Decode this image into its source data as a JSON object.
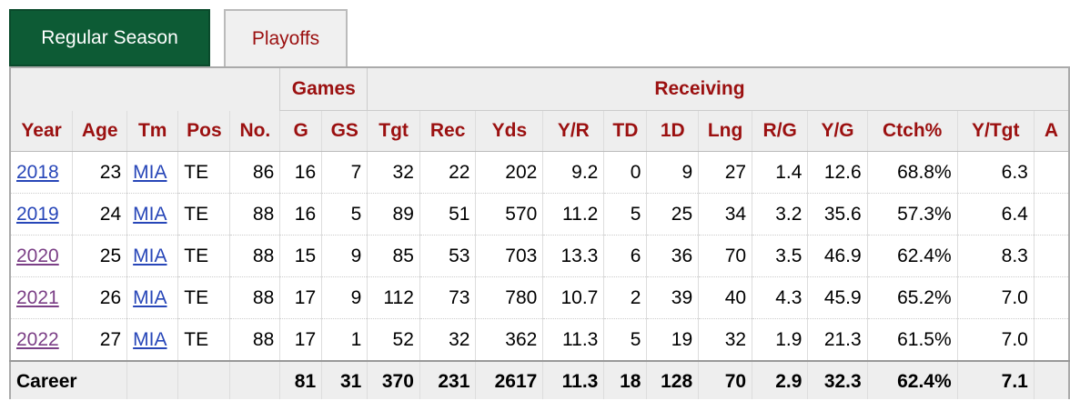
{
  "tabs": [
    "Regular Season",
    "Playoffs"
  ],
  "table": {
    "group_headers": [
      "Games",
      "Receiving"
    ],
    "columns": [
      "Year",
      "Age",
      "Tm",
      "Pos",
      "No.",
      "G",
      "GS",
      "Tgt",
      "Rec",
      "Yds",
      "Y/R",
      "TD",
      "1D",
      "Lng",
      "R/G",
      "Y/G",
      "Ctch%",
      "Y/Tgt",
      "A"
    ],
    "rows": [
      [
        "2018",
        "23",
        "MIA",
        "TE",
        "86",
        "16",
        "7",
        "32",
        "22",
        "202",
        "9.2",
        "0",
        "9",
        "27",
        "1.4",
        "12.6",
        "68.8%",
        "6.3"
      ],
      [
        "2019",
        "24",
        "MIA",
        "TE",
        "88",
        "16",
        "5",
        "89",
        "51",
        "570",
        "11.2",
        "5",
        "25",
        "34",
        "3.2",
        "35.6",
        "57.3%",
        "6.4"
      ],
      [
        "2020",
        "25",
        "MIA",
        "TE",
        "88",
        "15",
        "9",
        "85",
        "53",
        "703",
        "13.3",
        "6",
        "36",
        "70",
        "3.5",
        "46.9",
        "62.4%",
        "8.3"
      ],
      [
        "2021",
        "26",
        "MIA",
        "TE",
        "88",
        "17",
        "9",
        "112",
        "73",
        "780",
        "10.7",
        "2",
        "39",
        "40",
        "4.3",
        "45.9",
        "65.2%",
        "7.0"
      ],
      [
        "2022",
        "27",
        "MIA",
        "TE",
        "88",
        "17",
        "1",
        "52",
        "32",
        "362",
        "11.3",
        "5",
        "19",
        "32",
        "1.9",
        "21.3",
        "61.5%",
        "7.0"
      ]
    ],
    "career": {
      "label": "Career",
      "values": [
        "81",
        "31",
        "370",
        "231",
        "2617",
        "11.3",
        "18",
        "128",
        "70",
        "2.9",
        "32.3",
        "62.4%",
        "7.1"
      ]
    }
  }
}
